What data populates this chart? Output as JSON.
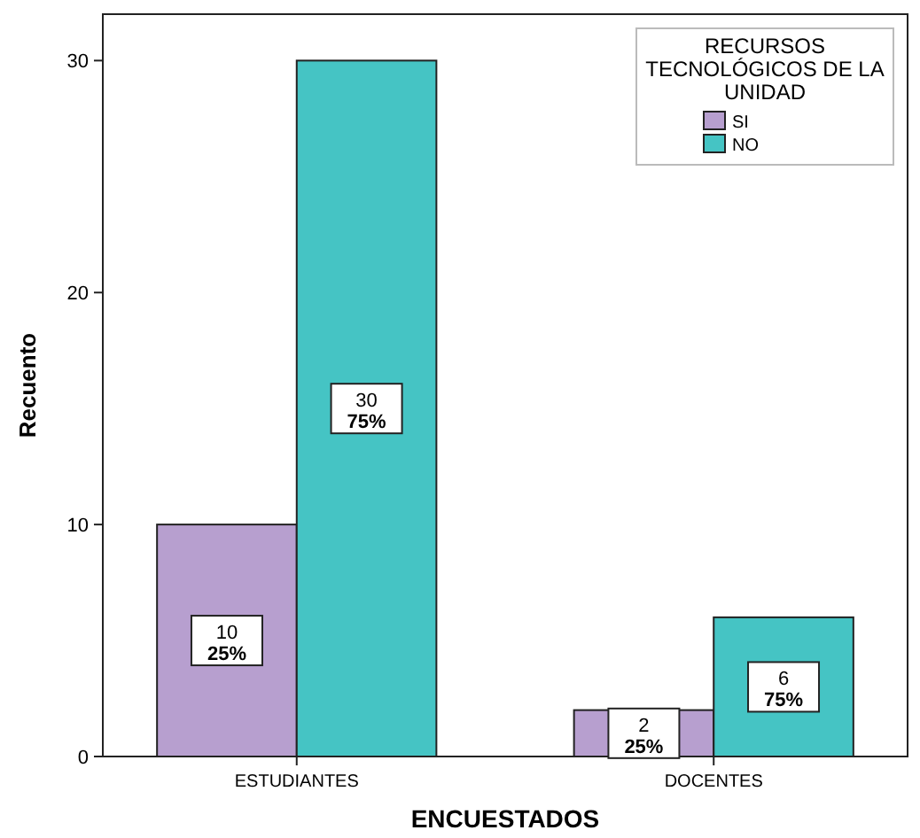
{
  "chart_data": {
    "type": "bar",
    "xlabel": "ENCUESTADOS",
    "ylabel": "Recuento",
    "legend_title": "RECURSOS TECNOLÓGICOS DE LA UNIDAD",
    "legend": "top right",
    "categories": [
      "ESTUDIANTES",
      "DOCENTES"
    ],
    "ylim": [
      0,
      32
    ],
    "yticks": [
      0,
      10,
      20,
      30
    ],
    "series": [
      {
        "name": "SI",
        "color": "#b79fcf",
        "values": [
          10,
          2
        ],
        "value_labels": [
          "10\n25%",
          "2\n25%"
        ]
      },
      {
        "name": "NO",
        "color": "#45c4c4",
        "values": [
          30,
          6
        ],
        "value_labels": [
          "30\n75%",
          "6\n75%"
        ]
      }
    ]
  }
}
